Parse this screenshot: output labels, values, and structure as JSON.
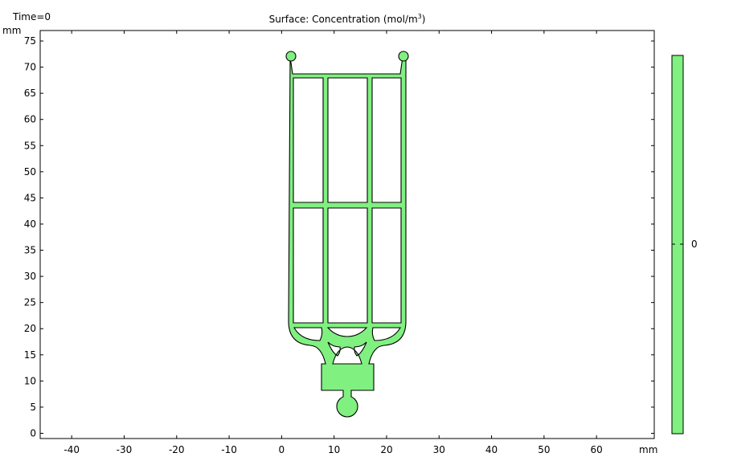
{
  "time_label": "Time=0",
  "chart_data": {
    "type": "heatmap",
    "title_prefix": "Surface: Concentration (mol/m",
    "title_sup": "3",
    "title_suffix": ")",
    "xlabel": "mm",
    "ylabel": "mm",
    "xlim": [
      -46,
      71
    ],
    "ylim": [
      -1,
      77
    ],
    "x_ticks": [
      -40,
      -30,
      -20,
      -10,
      0,
      10,
      20,
      30,
      40,
      50,
      60
    ],
    "y_ticks": [
      0,
      5,
      10,
      15,
      20,
      25,
      30,
      35,
      40,
      45,
      50,
      55,
      60,
      65,
      70,
      75
    ],
    "surface_color": "#80f080",
    "colorbar": {
      "ticks": [
        0
      ],
      "color": "#80f080"
    }
  }
}
